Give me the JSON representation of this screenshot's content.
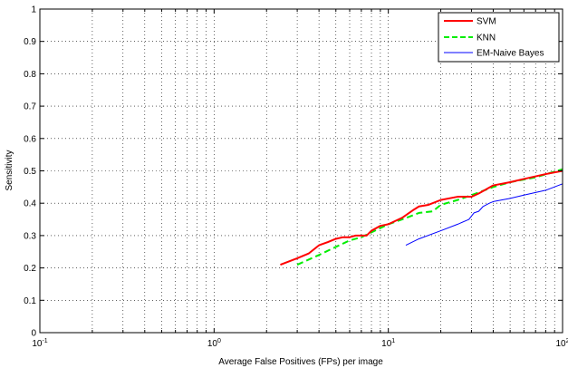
{
  "chart_data": {
    "type": "line",
    "title": "",
    "xlabel": "Average False Positives (FPs) per image",
    "ylabel": "Sensitivity",
    "xscale": "log",
    "xlim": [
      0.1,
      100
    ],
    "ylim": [
      0,
      1
    ],
    "grid": true,
    "legend_position": "top-right",
    "x_tick_labels": [
      {
        "base": "10",
        "exp": "-1"
      },
      {
        "base": "10",
        "exp": "0"
      },
      {
        "base": "10",
        "exp": "1"
      },
      {
        "base": "10",
        "exp": "2"
      }
    ],
    "y_tick_labels": [
      "0",
      "0.1",
      "0.2",
      "0.3",
      "0.4",
      "0.5",
      "0.6",
      "0.7",
      "0.8",
      "0.9",
      "1"
    ],
    "series": [
      {
        "name": "SVM",
        "color": "#ff0000",
        "style": "solid",
        "x": [
          2.4,
          3.0,
          3.5,
          4.0,
          4.5,
          5.0,
          5.5,
          6.0,
          6.5,
          7.5,
          8.0,
          9.0,
          10.0,
          12.0,
          14.0,
          15.0,
          17.0,
          20.0,
          25.0,
          30.0,
          33.0,
          40.0,
          50.0,
          60.0,
          80.0,
          100.0
        ],
        "y": [
          0.21,
          0.23,
          0.245,
          0.27,
          0.28,
          0.29,
          0.295,
          0.295,
          0.3,
          0.3,
          0.315,
          0.33,
          0.335,
          0.355,
          0.38,
          0.39,
          0.395,
          0.41,
          0.42,
          0.42,
          0.43,
          0.455,
          0.465,
          0.475,
          0.49,
          0.5
        ]
      },
      {
        "name": "KNN",
        "color": "#00ee00",
        "style": "dashed",
        "x": [
          3.0,
          4.0,
          5.0,
          6.0,
          7.0,
          8.0,
          10.0,
          12.0,
          15.0,
          18.0,
          20.0,
          25.0,
          30.0,
          40.0,
          50.0,
          70.0,
          100.0
        ],
        "y": [
          0.21,
          0.24,
          0.265,
          0.285,
          0.295,
          0.31,
          0.335,
          0.35,
          0.37,
          0.375,
          0.395,
          0.41,
          0.425,
          0.45,
          0.465,
          0.48,
          0.505
        ]
      },
      {
        "name": "EM-Naive Bayes",
        "color": "#0000ff",
        "style": "solid",
        "x": [
          12.6,
          15.0,
          20.0,
          25.0,
          29.0,
          31.0,
          33.0,
          35.0,
          38.0,
          40.0,
          50.0,
          60.0,
          80.0,
          100.0
        ],
        "y": [
          0.27,
          0.29,
          0.315,
          0.335,
          0.35,
          0.37,
          0.375,
          0.39,
          0.4,
          0.405,
          0.415,
          0.425,
          0.44,
          0.46
        ]
      }
    ]
  }
}
